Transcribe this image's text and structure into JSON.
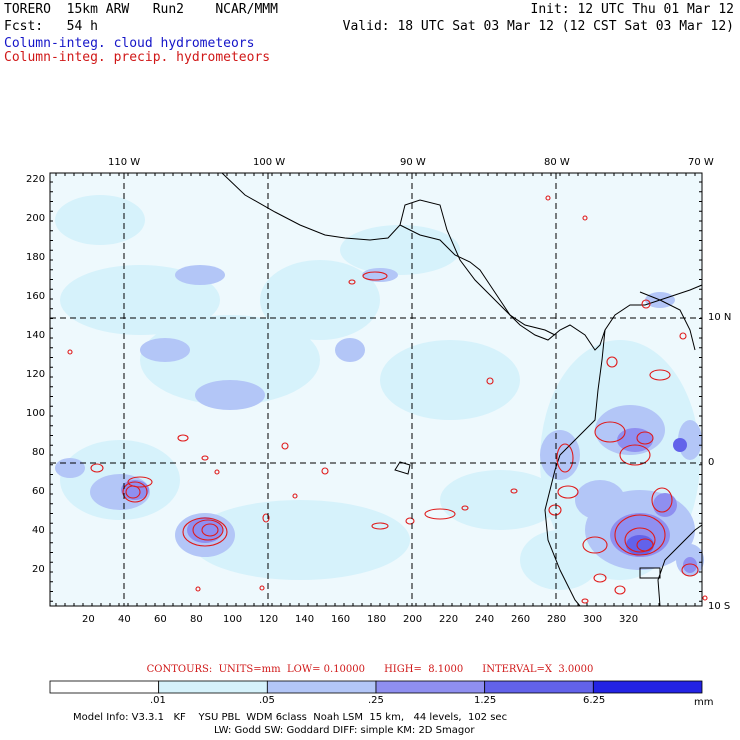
{
  "header": {
    "model": "TORERO  15km ARW   Run2    NCAR/MMM",
    "init": "Init: 12 UTC Thu 01 Mar 12",
    "fcst": "Fcst:   54 h",
    "valid": "Valid: 18 UTC Sat 03 Mar 12 (12 CST Sat 03 Mar 12)",
    "legend_cloud": "Column-integ. cloud hydrometeors",
    "legend_precip": "Column-integ. precip. hydrometeors"
  },
  "map": {
    "top_lon_labels": [
      "110 W",
      "100 W",
      "90 W",
      "80 W",
      "70 W"
    ],
    "right_lat_labels": [
      "10 N",
      "0",
      "10 S"
    ],
    "y_ticks": [
      "220",
      "200",
      "180",
      "160",
      "140",
      "120",
      "100",
      "80",
      "60",
      "40",
      "20"
    ],
    "x_ticks": [
      "20",
      "40",
      "60",
      "80",
      "100",
      "120",
      "140",
      "160",
      "180",
      "200",
      "220",
      "240",
      "260",
      "280",
      "300",
      "320"
    ]
  },
  "contour_info": {
    "text": "CONTOURS:  UNITS=mm  LOW= 0.10000      HIGH=  8.1000      INTERVAL=X  3.0000"
  },
  "colorbar": {
    "labels": [
      ".01",
      ".05",
      ".25",
      "1.25",
      "6.25"
    ],
    "units": "mm",
    "colors": [
      "#ffffff",
      "#d6f2fb",
      "#b3c6f7",
      "#8f8ff0",
      "#6262ea",
      "#2323e4"
    ]
  },
  "model_info": {
    "line1": "Model Info: V3.3.1   KF    YSU PBL  WDM 6class  Noah LSM  15 km,   44 levels,  102 sec",
    "line2": "LW: Godd SW: Goddard DIFF: simple KM: 2D Smagor"
  }
}
